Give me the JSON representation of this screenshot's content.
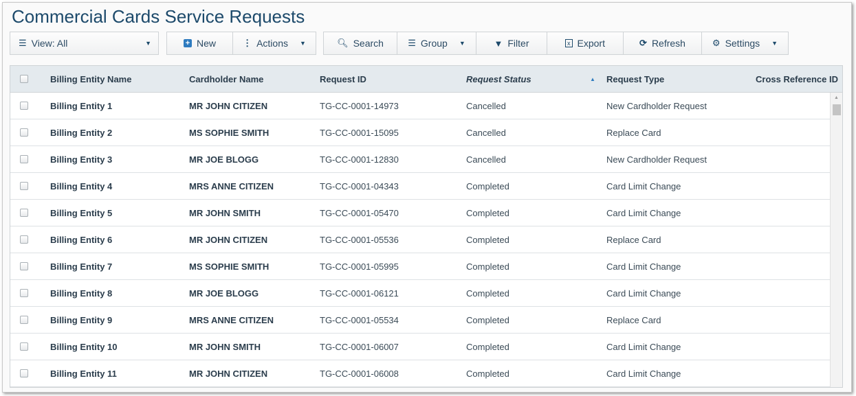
{
  "title": "Commercial Cards Service Requests",
  "toolbar": {
    "view": "View: All",
    "new": "New",
    "actions": "Actions",
    "search": "Search",
    "group": "Group",
    "filter": "Filter",
    "export": "Export",
    "refresh": "Refresh",
    "settings": "Settings"
  },
  "columns": {
    "billing": "Billing Entity Name",
    "cardholder": "Cardholder Name",
    "request_id": "Request ID",
    "status": "Request Status",
    "type": "Request Type",
    "xref": "Cross Reference ID"
  },
  "sort": {
    "column": "Request Status",
    "direction": "ascending"
  },
  "rows": [
    {
      "billing": "Billing Entity 1",
      "cardholder": "MR JOHN CITIZEN",
      "request_id": "TG-CC-0001-14973",
      "status": "Cancelled",
      "type": "New Cardholder Request"
    },
    {
      "billing": "Billing Entity 2",
      "cardholder": "MS SOPHIE SMITH",
      "request_id": "TG-CC-0001-15095",
      "status": "Cancelled",
      "type": "Replace Card"
    },
    {
      "billing": "Billing Entity 3",
      "cardholder": "MR JOE BLOGG",
      "request_id": "TG-CC-0001-12830",
      "status": "Cancelled",
      "type": "New Cardholder Request"
    },
    {
      "billing": "Billing Entity 4",
      "cardholder": "MRS ANNE CITIZEN",
      "request_id": "TG-CC-0001-04343",
      "status": "Completed",
      "type": "Card Limit Change"
    },
    {
      "billing": "Billing Entity 5",
      "cardholder": "MR JOHN SMITH",
      "request_id": "TG-CC-0001-05470",
      "status": "Completed",
      "type": "Card Limit Change"
    },
    {
      "billing": "Billing Entity 6",
      "cardholder": "MR JOHN CITIZEN",
      "request_id": "TG-CC-0001-05536",
      "status": "Completed",
      "type": "Replace Card"
    },
    {
      "billing": "Billing Entity 7",
      "cardholder": "MS SOPHIE SMITH",
      "request_id": "TG-CC-0001-05995",
      "status": "Completed",
      "type": "Card Limit Change"
    },
    {
      "billing": "Billing Entity 8",
      "cardholder": "MR JOE BLOGG",
      "request_id": "TG-CC-0001-06121",
      "status": "Completed",
      "type": "Card Limit Change"
    },
    {
      "billing": "Billing Entity 9",
      "cardholder": "MRS ANNE CITIZEN",
      "request_id": "TG-CC-0001-05534",
      "status": "Completed",
      "type": "Replace Card"
    },
    {
      "billing": "Billing Entity 10",
      "cardholder": "MR JOHN SMITH",
      "request_id": "TG-CC-0001-06007",
      "status": "Completed",
      "type": "Card Limit Change"
    },
    {
      "billing": "Billing Entity 11",
      "cardholder": "MR JOHN CITIZEN",
      "request_id": "TG-CC-0001-06008",
      "status": "Completed",
      "type": "Card Limit Change"
    }
  ]
}
